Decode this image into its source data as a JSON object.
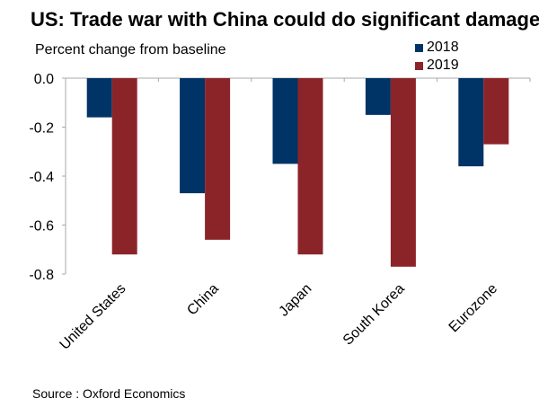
{
  "chart_data": {
    "type": "bar",
    "title": "US: Trade war with China could do significant damage",
    "subtitle": "Percent change from baseline",
    "xlabel": "",
    "ylabel": "Percent change from baseline",
    "categories": [
      "United States",
      "China",
      "Japan",
      "South Korea",
      "Eurozone"
    ],
    "series": [
      {
        "name": "2018",
        "color": "#003366",
        "values": [
          -0.16,
          -0.47,
          -0.35,
          -0.15,
          -0.36
        ]
      },
      {
        "name": "2019",
        "color": "#8b2429",
        "values": [
          -0.72,
          -0.66,
          -0.72,
          -0.77,
          -0.27
        ]
      }
    ],
    "ylim": [
      -0.8,
      0.0
    ],
    "yticks": [
      "0.0",
      "-0.2",
      "-0.4",
      "-0.6",
      "-0.8"
    ],
    "ytick_values": [
      0.0,
      -0.2,
      -0.4,
      -0.6,
      -0.8
    ],
    "grid": false,
    "legend_position": "top-right",
    "source": "Source : Oxford Economics"
  }
}
